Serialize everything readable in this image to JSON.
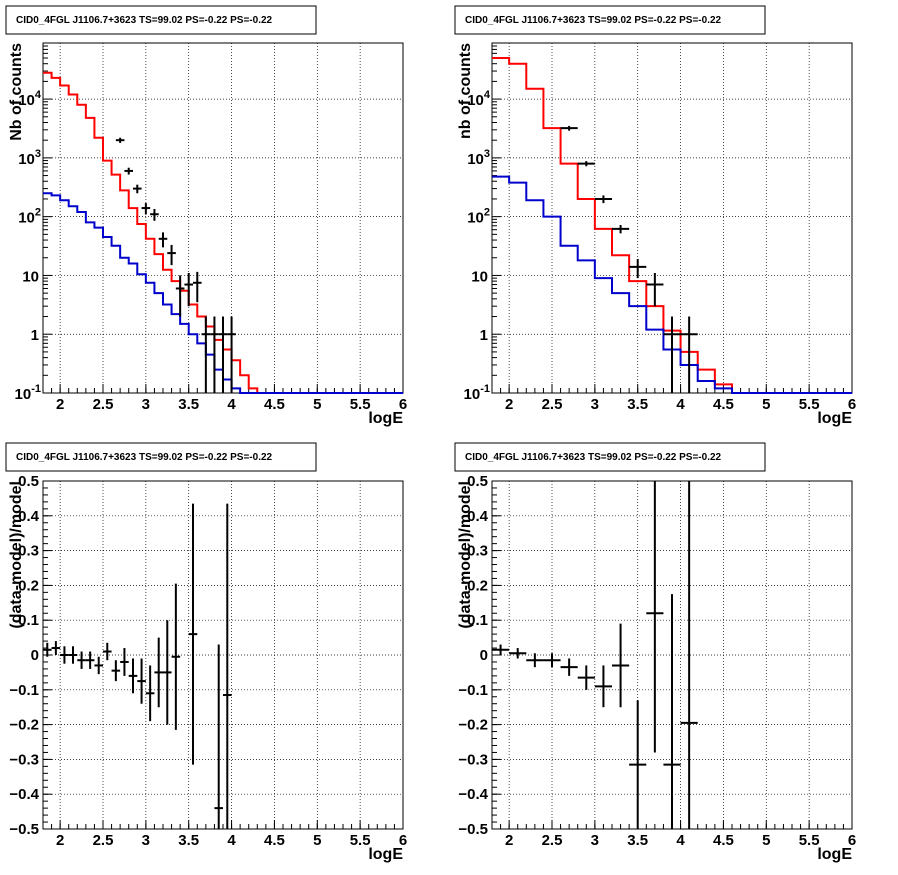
{
  "colors": {
    "background": "#ffffff",
    "axis": "#000000",
    "grid": "#000000",
    "data": "#000000",
    "total_model": "#ff0000",
    "source_model": "#0000cc"
  },
  "chart_data": [
    {
      "type": "line",
      "panel": "top-left",
      "title": "CID0_4FGL J1106.7+3623 TS=99.02 PS=-0.22 PS=-0.22",
      "xlabel": "logE",
      "ylabel": "Nb of counts",
      "xlim": [
        1.8,
        6
      ],
      "ylim": [
        0.1,
        90000
      ],
      "log_y": true,
      "grid": true,
      "x_ticks": [
        "2",
        "2.5",
        "3",
        "3.5",
        "4",
        "4.5",
        "5",
        "5.5",
        "6"
      ],
      "y_ticks": [
        "10^-1",
        "1",
        "10",
        "10^2",
        "10^3",
        "10^4"
      ],
      "bin_edges": [
        1.8,
        1.9,
        2.0,
        2.1,
        2.2,
        2.3,
        2.4,
        2.5,
        2.6,
        2.7,
        2.8,
        2.9,
        3.0,
        3.1,
        3.2,
        3.3,
        3.4,
        3.5,
        3.6,
        3.7,
        3.8,
        3.9,
        4.0,
        4.1,
        4.2,
        4.3,
        4.4,
        4.5,
        4.6,
        4.7,
        4.8,
        4.9,
        5.0,
        5.1,
        5.2,
        5.3,
        5.4,
        5.5,
        5.6,
        5.7,
        5.8,
        5.9,
        6.0
      ],
      "series": [
        {
          "role": "total_model",
          "values": [
            28000,
            23000,
            17000,
            12000,
            8000,
            4800,
            2200,
            900,
            520,
            280,
            140,
            75,
            42,
            23,
            12.5,
            8,
            5.5,
            3.2,
            2,
            1.35,
            0.8,
            0.55,
            0.36,
            0.2,
            0.12,
            0.1,
            0.1,
            0.1,
            0.1,
            0.1,
            0.1,
            0.1,
            0.1,
            0.1,
            0.1,
            0.1,
            0.1,
            0.1,
            0.1,
            0.1,
            0.1,
            0.1
          ]
        },
        {
          "role": "source_model",
          "values": [
            250,
            230,
            190,
            150,
            120,
            80,
            65,
            45,
            32,
            20,
            16,
            10.5,
            7.5,
            5,
            3.2,
            2.2,
            1.5,
            1,
            0.7,
            0.45,
            0.25,
            0.17,
            0.12,
            0.1,
            0.1,
            0.1,
            0.1,
            0.1,
            0.1,
            0.1,
            0.1,
            0.1,
            0.1,
            0.1,
            0.1,
            0.1,
            0.1,
            0.1,
            0.1,
            0.1,
            0.1,
            0.1
          ]
        },
        {
          "role": "data",
          "points": [
            [
              2.7,
              2000,
              0.05,
              200
            ],
            [
              2.8,
              600,
              0.05,
              80
            ],
            [
              2.9,
              300,
              0.05,
              50
            ],
            [
              3.0,
              140,
              0.05,
              30
            ],
            [
              3.1,
              110,
              0.05,
              25
            ],
            [
              3.2,
              42,
              0.05,
              12
            ],
            [
              3.3,
              24,
              0.05,
              9
            ],
            [
              3.4,
              6,
              0.05,
              4
            ],
            [
              3.5,
              7,
              0.05,
              4
            ],
            [
              3.6,
              7.5,
              0.05,
              4
            ],
            [
              3.7,
              1,
              0.05,
              1
            ],
            [
              3.8,
              1,
              0.05,
              1
            ],
            [
              3.9,
              1,
              0.05,
              1
            ],
            [
              4.0,
              1,
              0.05,
              1
            ]
          ]
        }
      ]
    },
    {
      "type": "line",
      "panel": "top-right",
      "title": "CID0_4FGL J1106.7+3623 TS=99.02 PS=-0.22 PS=-0.22",
      "xlabel": "logE",
      "ylabel": "nb of counts",
      "xlim": [
        1.8,
        6
      ],
      "ylim": [
        0.1,
        90000
      ],
      "log_y": true,
      "grid": true,
      "x_ticks": [
        "2",
        "2.5",
        "3",
        "3.5",
        "4",
        "4.5",
        "5",
        "5.5",
        "6"
      ],
      "y_ticks": [
        "10^-1",
        "1",
        "10",
        "10^2",
        "10^3",
        "10^4"
      ],
      "bin_edges": [
        1.8,
        2.0,
        2.2,
        2.4,
        2.6,
        2.8,
        3.0,
        3.2,
        3.4,
        3.6,
        3.8,
        4.0,
        4.2,
        4.4,
        4.6,
        4.8,
        5.0,
        5.2,
        5.4,
        5.6,
        5.8,
        6.0
      ],
      "series": [
        {
          "role": "total_model",
          "values": [
            50000,
            40000,
            15000,
            3200,
            800,
            200,
            62,
            22,
            8,
            3,
            1.15,
            0.5,
            0.25,
            0.14,
            0.1,
            0.1,
            0.1,
            0.1,
            0.1,
            0.1,
            0.1
          ]
        },
        {
          "role": "source_model",
          "values": [
            480,
            380,
            190,
            100,
            32,
            18,
            9,
            5,
            3,
            1.2,
            0.55,
            0.3,
            0.16,
            0.12,
            0.1,
            0.1,
            0.1,
            0.1,
            0.1,
            0.1,
            0.1
          ]
        },
        {
          "role": "data",
          "points": [
            [
              2.7,
              3200,
              0.1,
              300
            ],
            [
              2.9,
              800,
              0.1,
              80
            ],
            [
              3.1,
              200,
              0.1,
              30
            ],
            [
              3.3,
              62,
              0.1,
              10
            ],
            [
              3.5,
              14,
              0.1,
              5
            ],
            [
              3.7,
              7,
              0.1,
              4
            ],
            [
              3.9,
              1,
              0.1,
              1
            ],
            [
              4.1,
              1,
              0.1,
              1
            ]
          ]
        }
      ]
    },
    {
      "type": "scatter",
      "panel": "bottom-left",
      "title": "CID0_4FGL J1106.7+3623 TS=99.02 PS=-0.22 PS=-0.22",
      "xlabel": "logE",
      "ylabel": "(data-model)/model",
      "xlim": [
        1.8,
        6
      ],
      "ylim": [
        -0.5,
        0.5
      ],
      "grid": true,
      "x_ticks": [
        "2",
        "2.5",
        "3",
        "3.5",
        "4",
        "4.5",
        "5",
        "5.5",
        "6"
      ],
      "y_ticks": [
        "-0.5",
        "-0.4",
        "-0.3",
        "-0.2",
        "-0.1",
        "0",
        "0.1",
        "0.2",
        "0.3",
        "0.4",
        "0.5"
      ],
      "points": [
        [
          1.85,
          0.015,
          0.05,
          0.02
        ],
        [
          1.95,
          0.02,
          0.05,
          0.02
        ],
        [
          2.05,
          0.0,
          0.05,
          0.025
        ],
        [
          2.15,
          0.0,
          0.05,
          0.025
        ],
        [
          2.25,
          -0.015,
          0.05,
          0.025
        ],
        [
          2.35,
          -0.015,
          0.05,
          0.025
        ],
        [
          2.45,
          -0.03,
          0.05,
          0.025
        ],
        [
          2.55,
          0.01,
          0.05,
          0.025
        ],
        [
          2.65,
          -0.045,
          0.05,
          0.03
        ],
        [
          2.75,
          -0.02,
          0.05,
          0.04
        ],
        [
          2.85,
          -0.06,
          0.05,
          0.05
        ],
        [
          2.95,
          -0.075,
          0.05,
          0.065
        ],
        [
          3.05,
          -0.11,
          0.05,
          0.08
        ],
        [
          3.15,
          -0.05,
          0.05,
          0.1
        ],
        [
          3.25,
          -0.05,
          0.05,
          0.15
        ],
        [
          3.35,
          -0.005,
          0.05,
          0.21
        ],
        [
          3.55,
          0.06,
          0.05,
          0.375
        ],
        [
          3.85,
          -0.44,
          0.05,
          0.47
        ],
        [
          3.95,
          -0.115,
          0.05,
          0.55
        ]
      ]
    },
    {
      "type": "scatter",
      "panel": "bottom-right",
      "title": "CID0_4FGL J1106.7+3623 TS=99.02 PS=-0.22 PS=-0.22",
      "xlabel": "logE",
      "ylabel": "(data-model)/model",
      "xlim": [
        1.8,
        6
      ],
      "ylim": [
        -0.5,
        0.5
      ],
      "grid": true,
      "x_ticks": [
        "2",
        "2.5",
        "3",
        "3.5",
        "4",
        "4.5",
        "5",
        "5.5",
        "6"
      ],
      "y_ticks": [
        "-0.5",
        "-0.4",
        "-0.3",
        "-0.2",
        "-0.1",
        "0",
        "0.1",
        "0.2",
        "0.3",
        "0.4",
        "0.5"
      ],
      "points": [
        [
          1.9,
          0.015,
          0.1,
          0.015
        ],
        [
          2.1,
          0.005,
          0.1,
          0.015
        ],
        [
          2.3,
          -0.015,
          0.1,
          0.02
        ],
        [
          2.5,
          -0.015,
          0.1,
          0.02
        ],
        [
          2.7,
          -0.035,
          0.1,
          0.025
        ],
        [
          2.9,
          -0.065,
          0.1,
          0.035
        ],
        [
          3.1,
          -0.09,
          0.1,
          0.06
        ],
        [
          3.3,
          -0.03,
          0.1,
          0.12
        ],
        [
          3.5,
          -0.315,
          0.1,
          0.185
        ],
        [
          3.7,
          0.12,
          0.1,
          0.4
        ],
        [
          3.9,
          -0.315,
          0.1,
          0.49
        ],
        [
          4.1,
          -0.195,
          0.1,
          0.8
        ]
      ]
    }
  ]
}
